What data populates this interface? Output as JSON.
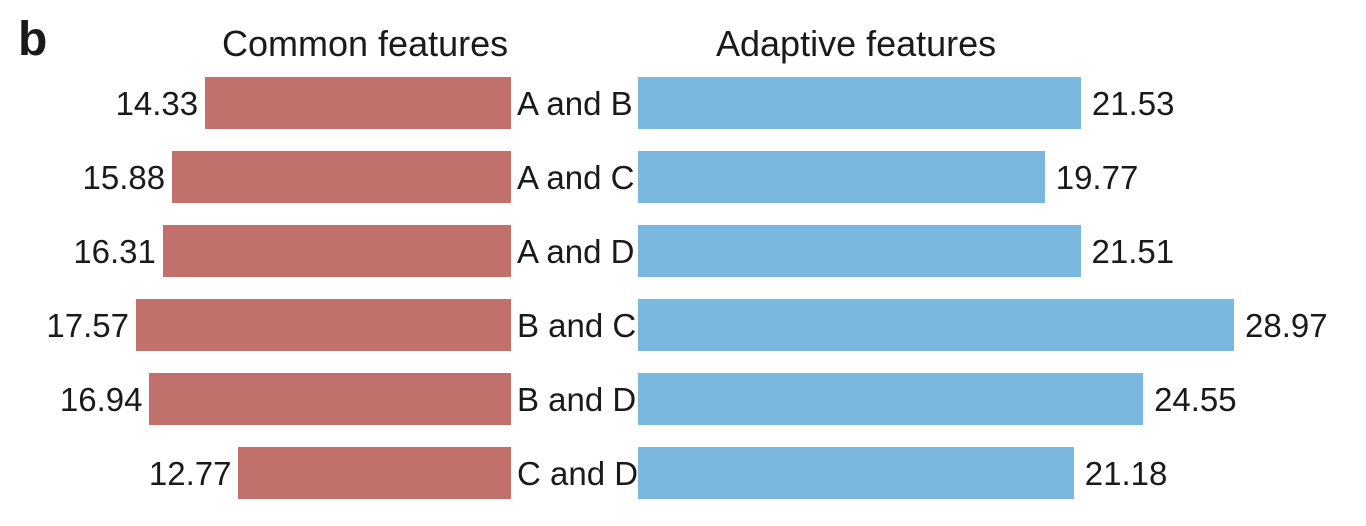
{
  "figure": {
    "panel_label": "b",
    "background": "#ffffff",
    "text_color": "#1a1a1a"
  },
  "chart_data": {
    "type": "bar",
    "layout": "diverging-horizontal",
    "title_left": "Common features",
    "title_right": "Adaptive features",
    "categories": [
      "A and B",
      "A and C",
      "A and D",
      "B and C",
      "B and D",
      "C and D"
    ],
    "series": [
      {
        "name": "Common features",
        "side": "left",
        "color": "#c1706c",
        "values": [
          14.33,
          15.88,
          16.31,
          17.57,
          16.94,
          12.77
        ]
      },
      {
        "name": "Adaptive features",
        "side": "right",
        "color": "#7ab8e0",
        "values": [
          21.53,
          19.77,
          21.51,
          28.97,
          24.55,
          21.18
        ]
      }
    ],
    "value_label_decimals": 2,
    "axes": "none",
    "grid": false,
    "legend_position": "titles-above-panels"
  }
}
